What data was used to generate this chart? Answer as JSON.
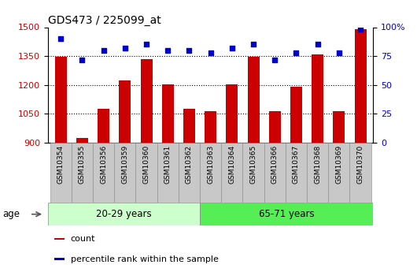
{
  "title": "GDS473 / 225099_at",
  "samples": [
    "GSM10354",
    "GSM10355",
    "GSM10356",
    "GSM10359",
    "GSM10360",
    "GSM10361",
    "GSM10362",
    "GSM10363",
    "GSM10364",
    "GSM10365",
    "GSM10366",
    "GSM10367",
    "GSM10368",
    "GSM10369",
    "GSM10370"
  ],
  "counts": [
    1345,
    925,
    1075,
    1225,
    1335,
    1205,
    1075,
    1065,
    1205,
    1345,
    1065,
    1190,
    1360,
    1065,
    1490
  ],
  "percentile_ranks": [
    90,
    72,
    80,
    82,
    85,
    80,
    80,
    78,
    82,
    85,
    72,
    78,
    85,
    78,
    98
  ],
  "group1_label": "20-29 years",
  "group1_count": 7,
  "group2_label": "65-71 years",
  "group2_count": 8,
  "age_label": "age",
  "ylim_left": [
    900,
    1500
  ],
  "ylim_right": [
    0,
    100
  ],
  "yticks_left": [
    900,
    1050,
    1200,
    1350,
    1500
  ],
  "yticks_right": [
    0,
    25,
    50,
    75,
    100
  ],
  "bar_color": "#cc0000",
  "dot_color": "#0000cc",
  "group1_color": "#ccffcc",
  "group2_color": "#55ee55",
  "xtick_bg_color": "#c8c8c8",
  "bg_color": "#ffffff",
  "legend_count_label": "count",
  "legend_pct_label": "percentile rank within the sample",
  "right_axis_label_color": "#0000cc",
  "left_axis_label_color": "#cc0000",
  "grid_color": "#000000",
  "border_color": "#888888"
}
